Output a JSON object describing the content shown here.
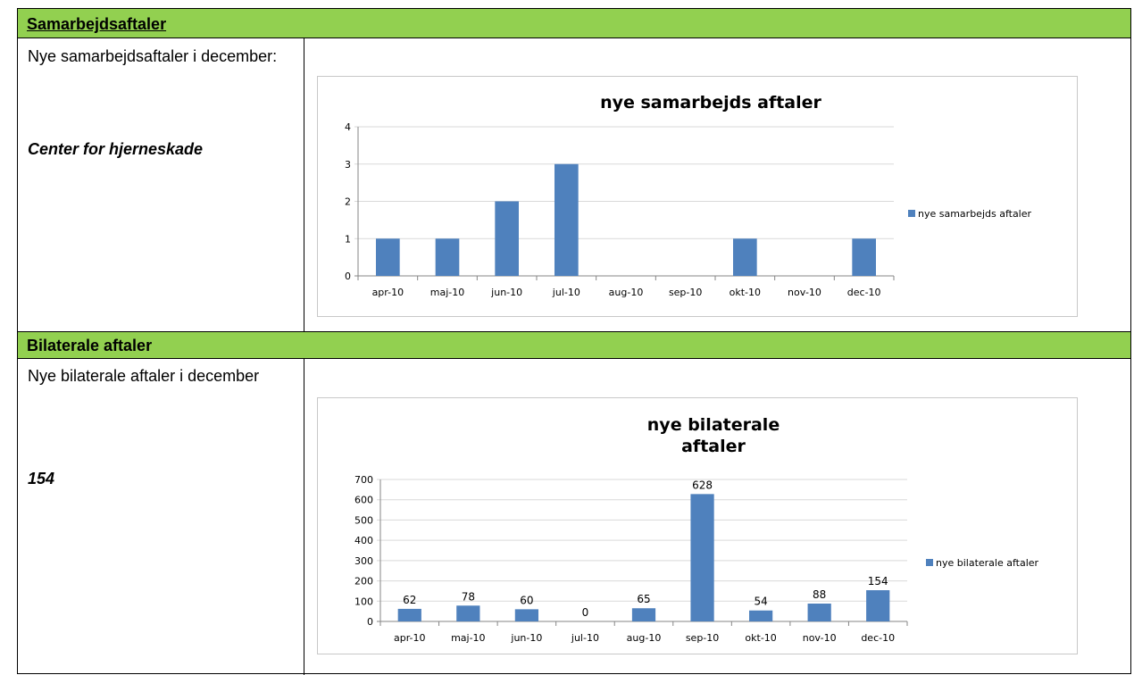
{
  "sections": [
    {
      "header": "Samarbejdsaftaler",
      "label": "Nye samarbejdsaftaler i december:",
      "value": "Center for hjerneskade"
    },
    {
      "header": "Bilaterale aftaler",
      "label": "Nye bilaterale aftaler i december",
      "value": "154"
    }
  ],
  "chart_data": [
    {
      "type": "bar",
      "title": "nye samarbejds aftaler",
      "categories": [
        "apr-10",
        "maj-10",
        "jun-10",
        "jul-10",
        "aug-10",
        "sep-10",
        "okt-10",
        "nov-10",
        "dec-10"
      ],
      "series": [
        {
          "name": "nye samarbejds aftaler",
          "values": [
            1,
            1,
            2,
            3,
            0,
            0,
            1,
            0,
            1
          ]
        }
      ],
      "ylim": [
        0,
        4
      ],
      "yticks": [
        "0",
        "1",
        "2",
        "3",
        "4"
      ],
      "data_labels": [],
      "legend": "right",
      "grid": true,
      "color": "#4f81bd"
    },
    {
      "type": "bar",
      "title_lines": [
        "nye bilaterale",
        "aftaler"
      ],
      "categories": [
        "apr-10",
        "maj-10",
        "jun-10",
        "jul-10",
        "aug-10",
        "sep-10",
        "okt-10",
        "nov-10",
        "dec-10"
      ],
      "series": [
        {
          "name": "nye bilaterale aftaler",
          "values": [
            62,
            78,
            60,
            0,
            65,
            628,
            54,
            88,
            154
          ]
        }
      ],
      "ylim": [
        0,
        700
      ],
      "yticks": [
        "0",
        "100",
        "200",
        "300",
        "400",
        "500",
        "600",
        "700"
      ],
      "data_labels": [
        "62",
        "78",
        "60",
        "0",
        "65",
        "628",
        "54",
        "88",
        "154"
      ],
      "legend": "right",
      "grid": true,
      "color": "#4f81bd"
    }
  ]
}
